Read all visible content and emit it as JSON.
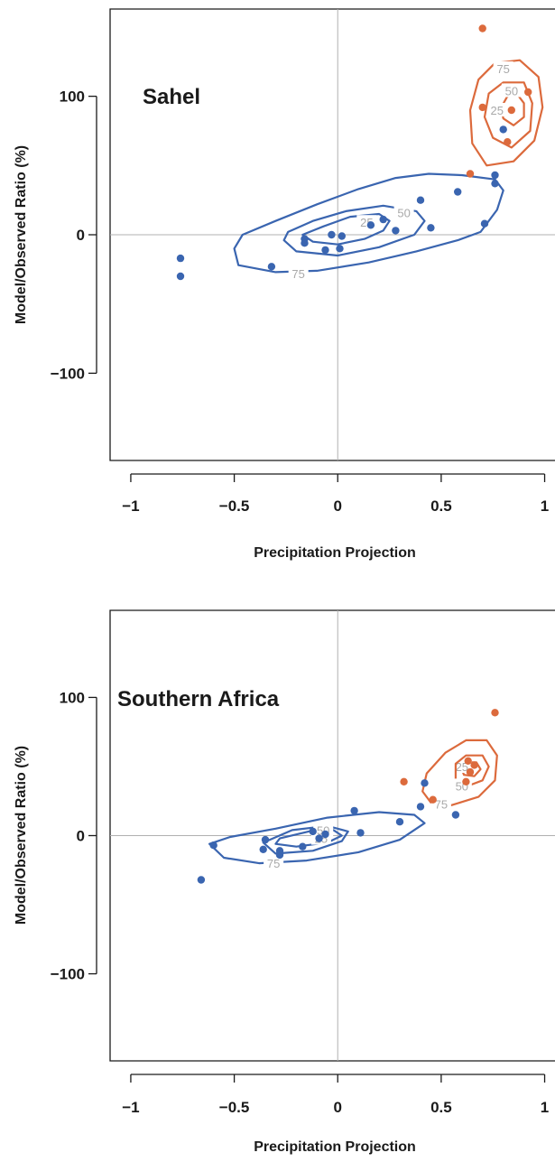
{
  "chart_data": [
    {
      "type": "scatter",
      "title": "Sahel",
      "xlabel": "Precipitation Projection",
      "ylabel": "Model/Observed Ratio (%)",
      "xlim": [
        -1.1,
        1.05
      ],
      "ylim": [
        -163,
        163
      ],
      "xticks": [
        -1,
        -0.5,
        0,
        0.5,
        1
      ],
      "xtick_labels": [
        "−1",
        "−0.5",
        "0",
        "0.5",
        "1"
      ],
      "yticks": [
        -100,
        0,
        100
      ],
      "ytick_labels": [
        "−100",
        "0",
        "100"
      ],
      "reference_lines": {
        "x": 0,
        "y": 0,
        "color": "#b0b0b0"
      },
      "series": [
        {
          "color": "#3a65b0",
          "points": [
            {
              "x": -0.76,
              "y": -17
            },
            {
              "x": -0.76,
              "y": -30
            },
            {
              "x": -0.32,
              "y": -23
            },
            {
              "x": -0.16,
              "y": -3
            },
            {
              "x": -0.16,
              "y": -6
            },
            {
              "x": -0.06,
              "y": -11
            },
            {
              "x": -0.03,
              "y": 0
            },
            {
              "x": 0.01,
              "y": -10
            },
            {
              "x": 0.02,
              "y": -1
            },
            {
              "x": 0.16,
              "y": 7
            },
            {
              "x": 0.22,
              "y": 11
            },
            {
              "x": 0.28,
              "y": 3
            },
            {
              "x": 0.4,
              "y": 25
            },
            {
              "x": 0.45,
              "y": 5
            },
            {
              "x": 0.58,
              "y": 31
            },
            {
              "x": 0.71,
              "y": 8
            },
            {
              "x": 0.76,
              "y": 43
            },
            {
              "x": 0.76,
              "y": 37
            },
            {
              "x": 0.8,
              "y": 76
            }
          ],
          "contours": [
            {
              "level": "25",
              "label_at": {
                "x": 0.14,
                "y": 9
              },
              "path": [
                [
                  -0.17,
                  0
                ],
                [
                  -0.12,
                  -5
                ],
                [
                  0.0,
                  -7
                ],
                [
                  0.13,
                  -3
                ],
                [
                  0.22,
                  3
                ],
                [
                  0.25,
                  10
                ],
                [
                  0.2,
                  15
                ],
                [
                  0.06,
                  13
                ],
                [
                  -0.07,
                  6
                ],
                [
                  -0.17,
                  0
                ]
              ]
            },
            {
              "level": "50",
              "label_at": {
                "x": 0.32,
                "y": 16
              },
              "path": [
                [
                  -0.26,
                  -4
                ],
                [
                  -0.2,
                  -12
                ],
                [
                  0.0,
                  -15
                ],
                [
                  0.2,
                  -9
                ],
                [
                  0.37,
                  0
                ],
                [
                  0.42,
                  10
                ],
                [
                  0.38,
                  17
                ],
                [
                  0.22,
                  21
                ],
                [
                  0.04,
                  17
                ],
                [
                  -0.12,
                  10
                ],
                [
                  -0.24,
                  2
                ],
                [
                  -0.26,
                  -4
                ]
              ]
            },
            {
              "level": "75",
              "label_at": {
                "x": -0.19,
                "y": -28
              },
              "path": [
                [
                  -0.5,
                  -10
                ],
                [
                  -0.48,
                  -22
                ],
                [
                  -0.3,
                  -27
                ],
                [
                  -0.1,
                  -26
                ],
                [
                  0.15,
                  -20
                ],
                [
                  0.38,
                  -12
                ],
                [
                  0.58,
                  -4
                ],
                [
                  0.69,
                  2
                ],
                [
                  0.77,
                  18
                ],
                [
                  0.8,
                  32
                ],
                [
                  0.76,
                  40
                ],
                [
                  0.6,
                  43
                ],
                [
                  0.44,
                  44
                ],
                [
                  0.28,
                  41
                ],
                [
                  0.1,
                  33
                ],
                [
                  -0.1,
                  22
                ],
                [
                  -0.3,
                  10
                ],
                [
                  -0.46,
                  0
                ],
                [
                  -0.5,
                  -10
                ]
              ]
            }
          ]
        },
        {
          "color": "#dc6a3c",
          "points": [
            {
              "x": 0.7,
              "y": 149
            },
            {
              "x": 0.92,
              "y": 103
            },
            {
              "x": 0.7,
              "y": 92
            },
            {
              "x": 0.84,
              "y": 90
            },
            {
              "x": 0.82,
              "y": 67
            },
            {
              "x": 0.64,
              "y": 44
            }
          ],
          "contours": [
            {
              "level": "25",
              "label_at": {
                "x": 0.77,
                "y": 90
              },
              "path": [
                [
                  0.85,
                  79
                ],
                [
                  0.8,
                  84
                ],
                [
                  0.79,
                  92
                ],
                [
                  0.82,
                  100
                ],
                [
                  0.87,
                  101
                ],
                [
                  0.9,
                  95
                ],
                [
                  0.9,
                  85
                ],
                [
                  0.85,
                  79
                ]
              ]
            },
            {
              "level": "50",
              "label_at": {
                "x": 0.84,
                "y": 104
              },
              "path": [
                [
                  0.84,
                  63
                ],
                [
                  0.75,
                  70
                ],
                [
                  0.71,
                  85
                ],
                [
                  0.73,
                  102
                ],
                [
                  0.8,
                  110
                ],
                [
                  0.9,
                  110
                ],
                [
                  0.94,
                  95
                ],
                [
                  0.93,
                  75
                ],
                [
                  0.84,
                  63
                ]
              ]
            },
            {
              "level": "75",
              "label_at": {
                "x": 0.8,
                "y": 120
              },
              "path": [
                [
                  0.72,
                  50
                ],
                [
                  0.65,
                  66
                ],
                [
                  0.64,
                  90
                ],
                [
                  0.68,
                  112
                ],
                [
                  0.76,
                  124
                ],
                [
                  0.88,
                  126
                ],
                [
                  0.97,
                  114
                ],
                [
                  0.99,
                  92
                ],
                [
                  0.95,
                  68
                ],
                [
                  0.85,
                  53
                ],
                [
                  0.72,
                  50
                ]
              ]
            }
          ]
        }
      ]
    },
    {
      "type": "scatter",
      "title": "Southern Africa",
      "xlabel": "Precipitation Projection",
      "ylabel": "Model/Observed Ratio (%)",
      "xlim": [
        -1.1,
        1.05
      ],
      "ylim": [
        -163,
        163
      ],
      "xticks": [
        -1,
        -0.5,
        0,
        0.5,
        1
      ],
      "xtick_labels": [
        "−1",
        "−0.5",
        "0",
        "0.5",
        "1"
      ],
      "yticks": [
        -100,
        0,
        100
      ],
      "ytick_labels": [
        "−100",
        "0",
        "100"
      ],
      "reference_lines": {
        "x": 0,
        "y": 0,
        "color": "#b0b0b0"
      },
      "series": [
        {
          "color": "#3a65b0",
          "points": [
            {
              "x": -0.66,
              "y": -32
            },
            {
              "x": -0.6,
              "y": -7
            },
            {
              "x": -0.35,
              "y": -3
            },
            {
              "x": -0.36,
              "y": -10
            },
            {
              "x": -0.28,
              "y": -11
            },
            {
              "x": -0.28,
              "y": -14
            },
            {
              "x": -0.17,
              "y": -8
            },
            {
              "x": -0.12,
              "y": 3
            },
            {
              "x": -0.09,
              "y": -2
            },
            {
              "x": -0.06,
              "y": 1
            },
            {
              "x": 0.08,
              "y": 18
            },
            {
              "x": 0.11,
              "y": 2
            },
            {
              "x": 0.3,
              "y": 10
            },
            {
              "x": 0.4,
              "y": 21
            },
            {
              "x": 0.42,
              "y": 38
            },
            {
              "x": 0.57,
              "y": 15
            }
          ],
          "contours": [
            {
              "level": "25",
              "label_at": {
                "x": -0.08,
                "y": -2
              },
              "path": [
                [
                  -0.3,
                  -6
                ],
                [
                  -0.2,
                  -8
                ],
                [
                  -0.05,
                  -5
                ],
                [
                  0.02,
                  0
                ],
                [
                  -0.02,
                  4
                ],
                [
                  -0.14,
                  3
                ],
                [
                  -0.28,
                  -2
                ],
                [
                  -0.3,
                  -6
                ]
              ]
            },
            {
              "level": "50",
              "label_at": {
                "x": -0.07,
                "y": 4
              },
              "path": [
                [
                  -0.36,
                  -5
                ],
                [
                  -0.3,
                  -13
                ],
                [
                  -0.12,
                  -11
                ],
                [
                  0.02,
                  -4
                ],
                [
                  0.05,
                  3
                ],
                [
                  -0.05,
                  7
                ],
                [
                  -0.22,
                  4
                ],
                [
                  -0.36,
                  -5
                ]
              ]
            },
            {
              "level": "75",
              "label_at": {
                "x": -0.31,
                "y": -20
              },
              "path": [
                [
                  -0.62,
                  -6
                ],
                [
                  -0.55,
                  -16
                ],
                [
                  -0.38,
                  -20
                ],
                [
                  -0.15,
                  -18
                ],
                [
                  0.1,
                  -12
                ],
                [
                  0.3,
                  -3
                ],
                [
                  0.42,
                  9
                ],
                [
                  0.37,
                  15
                ],
                [
                  0.2,
                  17
                ],
                [
                  -0.05,
                  13
                ],
                [
                  -0.3,
                  5
                ],
                [
                  -0.52,
                  -1
                ],
                [
                  -0.62,
                  -6
                ]
              ]
            }
          ]
        },
        {
          "color": "#dc6a3c",
          "points": [
            {
              "x": 0.76,
              "y": 89
            },
            {
              "x": 0.32,
              "y": 39
            },
            {
              "x": 0.46,
              "y": 26
            },
            {
              "x": 0.63,
              "y": 54
            },
            {
              "x": 0.66,
              "y": 51
            },
            {
              "x": 0.64,
              "y": 46
            },
            {
              "x": 0.62,
              "y": 39
            }
          ],
          "contours": [
            {
              "level": "25",
              "label_at": {
                "x": 0.6,
                "y": 50
              },
              "path": [
                [
                  0.61,
                  44
                ],
                [
                  0.6,
                  48
                ],
                [
                  0.63,
                  53
                ],
                [
                  0.67,
                  53
                ],
                [
                  0.69,
                  48
                ],
                [
                  0.66,
                  43
                ],
                [
                  0.61,
                  44
                ]
              ]
            },
            {
              "level": "50",
              "label_at": {
                "x": 0.6,
                "y": 36
              },
              "path": [
                [
                  0.57,
                  40
                ],
                [
                  0.57,
                  52
                ],
                [
                  0.62,
                  58
                ],
                [
                  0.7,
                  58
                ],
                [
                  0.73,
                  50
                ],
                [
                  0.7,
                  40
                ],
                [
                  0.63,
                  36
                ],
                [
                  0.57,
                  40
                ]
              ]
            },
            {
              "level": "75",
              "label_at": {
                "x": 0.5,
                "y": 23
              },
              "path": [
                [
                  0.41,
                  32
                ],
                [
                  0.43,
                  45
                ],
                [
                  0.52,
                  60
                ],
                [
                  0.62,
                  69
                ],
                [
                  0.72,
                  69
                ],
                [
                  0.77,
                  58
                ],
                [
                  0.76,
                  40
                ],
                [
                  0.68,
                  28
                ],
                [
                  0.55,
                  22
                ],
                [
                  0.45,
                  24
                ],
                [
                  0.41,
                  32
                ]
              ]
            }
          ]
        }
      ]
    }
  ]
}
